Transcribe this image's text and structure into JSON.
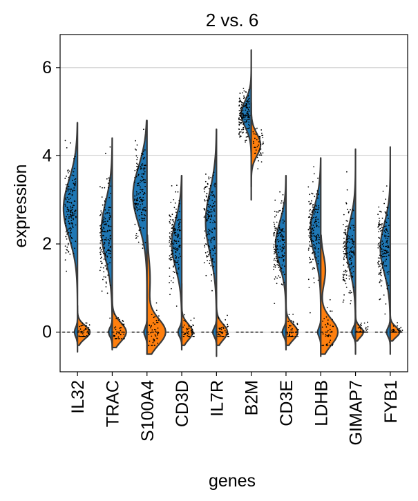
{
  "chart_data": {
    "type": "violin",
    "title": "2 vs. 6",
    "xlabel": "genes",
    "ylabel": "expression",
    "ylim": [
      -0.9,
      6.75
    ],
    "yticks": [
      0,
      2,
      4,
      6
    ],
    "grid": "horizontal",
    "split": true,
    "colors": {
      "left": "#1f77b4",
      "right": "#ff7f0e",
      "outline": "#3a3a3a",
      "points": "#000000",
      "grid": "#cccccc"
    },
    "series": [
      {
        "group": "2",
        "side": "left"
      },
      {
        "group": "6",
        "side": "right"
      }
    ],
    "categories": [
      "IL32",
      "TRAC",
      "S100A4",
      "CD3D",
      "IL7R",
      "B2M",
      "CD3E",
      "LDHB",
      "GIMAP7",
      "FYB1"
    ],
    "violins": [
      {
        "gene": "IL32",
        "left": {
          "min": -0.45,
          "max": 4.75,
          "modes": [
            {
              "c": 2.8,
              "w": 0.45,
              "s": 0.65
            },
            {
              "c": 0.0,
              "w": 0.1,
              "s": 0.1
            }
          ]
        },
        "right": {
          "min": -0.3,
          "max": 0.6,
          "modes": [
            {
              "c": 0.0,
              "w": 0.4,
              "s": 0.15
            }
          ]
        }
      },
      {
        "gene": "TRAC",
        "left": {
          "min": -0.4,
          "max": 4.4,
          "modes": [
            {
              "c": 2.3,
              "w": 0.35,
              "s": 0.65
            },
            {
              "c": 0.0,
              "w": 0.12,
              "s": 0.1
            }
          ]
        },
        "right": {
          "min": -0.35,
          "max": 0.9,
          "modes": [
            {
              "c": 0.0,
              "w": 0.45,
              "s": 0.22
            }
          ]
        }
      },
      {
        "gene": "S100A4",
        "left": {
          "min": -0.5,
          "max": 4.8,
          "modes": [
            {
              "c": 3.1,
              "w": 0.45,
              "s": 0.65
            },
            {
              "c": 0.0,
              "w": 0.1,
              "s": 0.1
            }
          ]
        },
        "right": {
          "min": -0.5,
          "max": 2.2,
          "modes": [
            {
              "c": 0.0,
              "w": 0.6,
              "s": 0.3
            },
            {
              "c": 1.2,
              "w": 0.1,
              "s": 0.5
            }
          ]
        }
      },
      {
        "gene": "CD3D",
        "left": {
          "min": -0.4,
          "max": 3.55,
          "modes": [
            {
              "c": 2.0,
              "w": 0.32,
              "s": 0.55
            },
            {
              "c": 0.0,
              "w": 0.12,
              "s": 0.1
            }
          ]
        },
        "right": {
          "min": -0.3,
          "max": 1.1,
          "modes": [
            {
              "c": 0.0,
              "w": 0.35,
              "s": 0.18
            }
          ]
        }
      },
      {
        "gene": "IL7R",
        "left": {
          "min": -0.55,
          "max": 4.6,
          "modes": [
            {
              "c": 2.5,
              "w": 0.35,
              "s": 0.7
            },
            {
              "c": 0.0,
              "w": 0.12,
              "s": 0.1
            }
          ]
        },
        "right": {
          "min": -0.3,
          "max": 0.9,
          "modes": [
            {
              "c": 0.0,
              "w": 0.35,
              "s": 0.18
            }
          ]
        }
      },
      {
        "gene": "B2M",
        "left": {
          "min": 3.0,
          "max": 6.4,
          "modes": [
            {
              "c": 4.95,
              "w": 0.32,
              "s": 0.3
            }
          ]
        },
        "right": {
          "min": 3.3,
          "max": 5.2,
          "modes": [
            {
              "c": 4.25,
              "w": 0.3,
              "s": 0.25
            }
          ]
        }
      },
      {
        "gene": "CD3E",
        "left": {
          "min": -0.4,
          "max": 3.55,
          "modes": [
            {
              "c": 2.0,
              "w": 0.33,
              "s": 0.5
            },
            {
              "c": 0.0,
              "w": 0.12,
              "s": 0.1
            }
          ]
        },
        "right": {
          "min": -0.3,
          "max": 1.0,
          "modes": [
            {
              "c": 0.0,
              "w": 0.38,
              "s": 0.18
            }
          ]
        }
      },
      {
        "gene": "LDHB",
        "left": {
          "min": -0.55,
          "max": 3.95,
          "modes": [
            {
              "c": 2.3,
              "w": 0.33,
              "s": 0.55
            },
            {
              "c": 0.0,
              "w": 0.1,
              "s": 0.1
            }
          ]
        },
        "right": {
          "min": -0.5,
          "max": 2.2,
          "modes": [
            {
              "c": 0.0,
              "w": 0.55,
              "s": 0.3
            },
            {
              "c": 1.4,
              "w": 0.15,
              "s": 0.35
            }
          ]
        }
      },
      {
        "gene": "GIMAP7",
        "left": {
          "min": -0.5,
          "max": 4.15,
          "modes": [
            {
              "c": 1.95,
              "w": 0.3,
              "s": 0.55
            },
            {
              "c": 0.0,
              "w": 0.12,
              "s": 0.1
            }
          ]
        },
        "right": {
          "min": -0.2,
          "max": 0.5,
          "modes": [
            {
              "c": 0.0,
              "w": 0.25,
              "s": 0.12
            }
          ]
        }
      },
      {
        "gene": "FYB1",
        "left": {
          "min": -0.5,
          "max": 4.2,
          "modes": [
            {
              "c": 1.9,
              "w": 0.32,
              "s": 0.55
            },
            {
              "c": 0.0,
              "w": 0.12,
              "s": 0.1
            }
          ]
        },
        "right": {
          "min": -0.2,
          "max": 0.5,
          "modes": [
            {
              "c": 0.0,
              "w": 0.3,
              "s": 0.12
            }
          ]
        }
      }
    ]
  }
}
